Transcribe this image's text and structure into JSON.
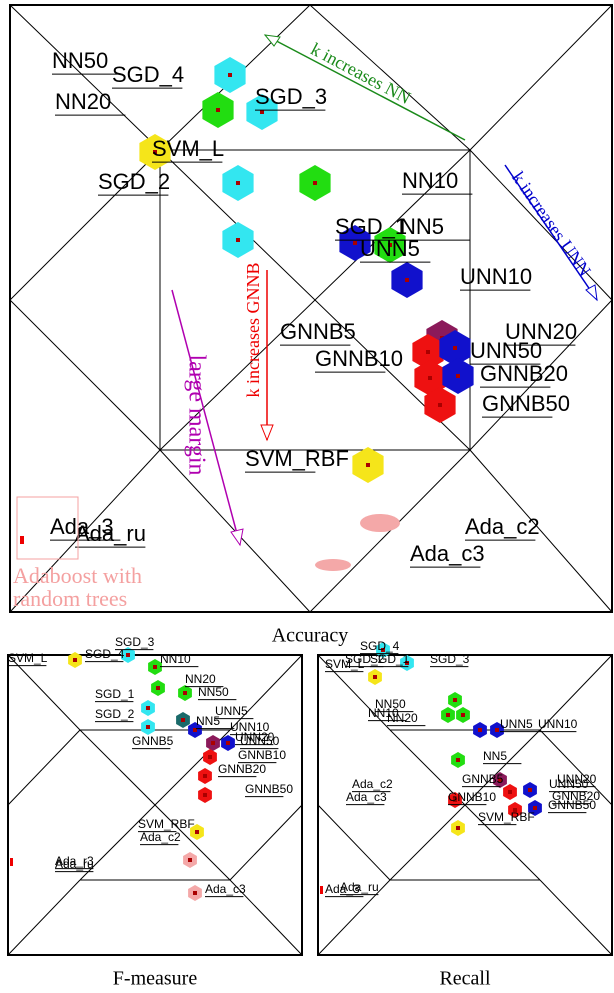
{
  "panels": [
    {
      "caption": "Accuracy",
      "labels": [
        "NN50",
        "SGD_4",
        "NN20",
        "SGD_3",
        "SVM_L",
        "SGD_2",
        "NN10",
        "SGD_1",
        "NN5",
        "UNN5",
        "UNN10",
        "GNNB5",
        "UNN20",
        "GNNB10",
        "UNN50",
        "GNNB20",
        "GNNB50",
        "SVM_RBF",
        "Ada_3",
        "Ada_ru",
        "Ada_c2",
        "Ada_c3"
      ],
      "annotations": [
        "k increases NN",
        "k increases UNN",
        "k increases GNNB",
        "large margin",
        "Adaboost with",
        "random trees"
      ]
    },
    {
      "caption": "F-measure",
      "labels": [
        "SVM_L",
        "SGD_4",
        "SGD_3",
        "NN10",
        "NN20",
        "NN50",
        "SGD_1",
        "SGD_2",
        "UNN5",
        "NN5",
        "UNN10",
        "GNNB5",
        "UNN20",
        "UNN50",
        "GNNB10",
        "GNNB20",
        "GNNB50",
        "SVM_RBF",
        "Ada_c2",
        "Ada_r3",
        "Ada_ru",
        "Ada_c3"
      ]
    },
    {
      "caption": "Recall",
      "labels": [
        "SGD_4",
        "SGD_3",
        "SGD_2",
        "SGD_1",
        "SVM_L",
        "NN50",
        "NN10",
        "NN20",
        "UNN5",
        "UNN10",
        "NN5",
        "GNNB5",
        "UNN20",
        "UNN50",
        "GNNB20",
        "GNNB50",
        "Ada_c2",
        "Ada_c3",
        "GNNB10",
        "SVM_RBF",
        "Ada_3",
        "Ada_ru"
      ]
    }
  ]
}
